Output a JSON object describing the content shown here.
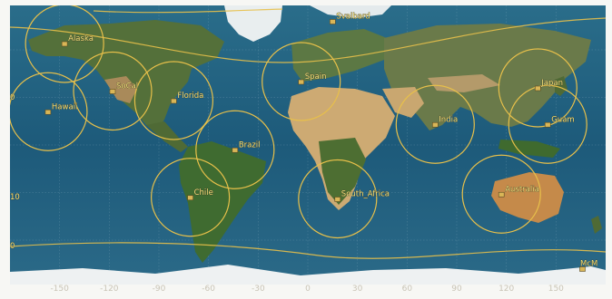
{
  "map": {
    "projection": "equirectangular",
    "ring_color": "#e8c04a",
    "label_color": "#f3e27a",
    "ocean_color": "#1e5f7e",
    "land_color": "#4f6a35",
    "desert_color": "#c8a874",
    "ice_color": "#eef1f2"
  },
  "stations": [
    {
      "id": "svalbard",
      "label": "Svalbard",
      "lon": 15,
      "lat": 78,
      "icon": "ground-station-icon"
    },
    {
      "id": "alaska",
      "label": "Alaska",
      "lon": -147,
      "lat": 64,
      "icon": "ground-station-icon"
    },
    {
      "id": "hawaii",
      "label": "Hawaii",
      "lon": -157,
      "lat": 21,
      "icon": "ground-station-icon"
    },
    {
      "id": "socal",
      "label": "SoCal",
      "lon": -118,
      "lat": 34,
      "icon": "ground-station-icon"
    },
    {
      "id": "florida",
      "label": "Florida",
      "lon": -81,
      "lat": 28,
      "icon": "ground-station-icon"
    },
    {
      "id": "spain",
      "label": "Spain",
      "lon": -4,
      "lat": 40,
      "icon": "ground-station-icon"
    },
    {
      "id": "india",
      "label": "India",
      "lon": 77,
      "lat": 13,
      "icon": "ground-station-icon"
    },
    {
      "id": "japan",
      "label": "Japan",
      "lon": 139,
      "lat": 36,
      "icon": "ground-station-icon"
    },
    {
      "id": "guam",
      "label": "Guam",
      "lon": 145,
      "lat": 13,
      "icon": "ground-station-icon"
    },
    {
      "id": "brazil",
      "label": "Brazil",
      "lon": -44,
      "lat": -3,
      "icon": "ground-station-icon"
    },
    {
      "id": "south_africa",
      "label": "South_Africa",
      "lon": 18,
      "lat": -34,
      "icon": "ground-station-icon"
    },
    {
      "id": "chile",
      "label": "Chile",
      "lon": -71,
      "lat": -33,
      "icon": "ground-station-icon"
    },
    {
      "id": "australia",
      "label": "Australia",
      "lon": 117,
      "lat": -31,
      "icon": "ground-station-icon"
    },
    {
      "id": "mcmurdo",
      "label": "McM",
      "lon": 166,
      "lat": -78,
      "icon": "ground-station-icon"
    }
  ],
  "axis": {
    "x_ticks": [
      "-150",
      "-120",
      "-90",
      "-60",
      "-30",
      "0",
      "30",
      "60",
      "90",
      "120",
      "150"
    ],
    "left_edge_labels": [
      "0",
      "10",
      "0"
    ]
  }
}
